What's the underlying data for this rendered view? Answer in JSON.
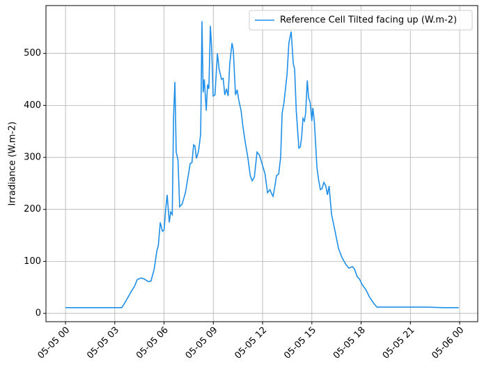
{
  "chart_data": {
    "type": "line",
    "ylabel": "Irradiance (W.m-2)",
    "x": [
      0,
      1,
      2,
      3,
      3.43,
      3.7,
      4.0,
      4.2,
      4.37,
      4.6,
      4.8,
      5.05,
      5.2,
      5.4,
      5.56,
      5.65,
      5.77,
      5.9,
      6.0,
      6.1,
      6.19,
      6.32,
      6.4,
      6.5,
      6.58,
      6.66,
      6.74,
      6.85,
      6.95,
      7.1,
      7.3,
      7.5,
      7.59,
      7.7,
      7.8,
      7.88,
      7.97,
      8.1,
      8.23,
      8.31,
      8.38,
      8.45,
      8.57,
      8.65,
      8.73,
      8.82,
      8.9,
      8.99,
      9.1,
      9.25,
      9.35,
      9.5,
      9.6,
      9.7,
      9.8,
      9.9,
      10.0,
      10.14,
      10.22,
      10.35,
      10.45,
      10.55,
      10.69,
      10.8,
      10.94,
      11.1,
      11.25,
      11.37,
      11.5,
      11.66,
      11.8,
      11.9,
      12.04,
      12.15,
      12.3,
      12.45,
      12.55,
      12.64,
      12.75,
      12.85,
      12.98,
      13.1,
      13.19,
      13.3,
      13.49,
      13.6,
      13.74,
      13.87,
      13.95,
      14.05,
      14.21,
      14.3,
      14.38,
      14.46,
      14.55,
      14.62,
      14.72,
      14.8,
      14.9,
      15.0,
      15.06,
      15.15,
      15.31,
      15.42,
      15.52,
      15.62,
      15.73,
      15.85,
      15.95,
      16.05,
      16.2,
      16.4,
      16.62,
      16.8,
      16.96,
      17.1,
      17.26,
      17.47,
      17.6,
      17.77,
      17.9,
      18.07,
      18.3,
      18.5,
      18.75,
      18.96,
      20,
      21,
      22,
      23,
      23.95
    ],
    "series": [
      {
        "name": "Reference Cell Tilted facing up (W.m-2)",
        "color": "#1f8fe8",
        "values": [
          11,
          11,
          11,
          11,
          11,
          25,
          42,
          52,
          65,
          68,
          66,
          61,
          62,
          85,
          120,
          130,
          175,
          158,
          160,
          200,
          228,
          175,
          195,
          190,
          380,
          445,
          310,
          295,
          205,
          210,
          232,
          270,
          288,
          290,
          324,
          322,
          298,
          312,
          345,
          562,
          425,
          450,
          390,
          440,
          432,
          553,
          510,
          418,
          420,
          500,
          470,
          450,
          452,
          420,
          432,
          418,
          480,
          520,
          505,
          420,
          430,
          410,
          390,
          360,
          330,
          300,
          265,
          255,
          262,
          310,
          305,
          295,
          280,
          268,
          232,
          238,
          230,
          225,
          245,
          265,
          268,
          300,
          385,
          405,
          460,
          520,
          542,
          480,
          470,
          390,
          318,
          320,
          340,
          375,
          370,
          385,
          448,
          415,
          405,
          370,
          395,
          370,
          280,
          255,
          238,
          240,
          252,
          245,
          228,
          245,
          190,
          160,
          125,
          110,
          100,
          93,
          87,
          90,
          85,
          70,
          66,
          55,
          45,
          32,
          20,
          12,
          12,
          12,
          12,
          11,
          11
        ]
      }
    ],
    "xlim": [
      -1.19,
      25.1
    ],
    "xticks": [
      {
        "value": 0,
        "label": "05-05 00"
      },
      {
        "value": 3,
        "label": "05-05 03"
      },
      {
        "value": 6,
        "label": "05-05 06"
      },
      {
        "value": 9,
        "label": "05-05 09"
      },
      {
        "value": 12,
        "label": "05-05 12"
      },
      {
        "value": 15,
        "label": "05-05 15"
      },
      {
        "value": 18,
        "label": "05-05 18"
      },
      {
        "value": 21,
        "label": "05-05 21"
      },
      {
        "value": 24,
        "label": "05-06 00"
      }
    ],
    "ylim": [
      -16,
      592
    ],
    "yticks": [
      0,
      100,
      200,
      300,
      400,
      500
    ],
    "grid": true,
    "legend": "upper right"
  }
}
